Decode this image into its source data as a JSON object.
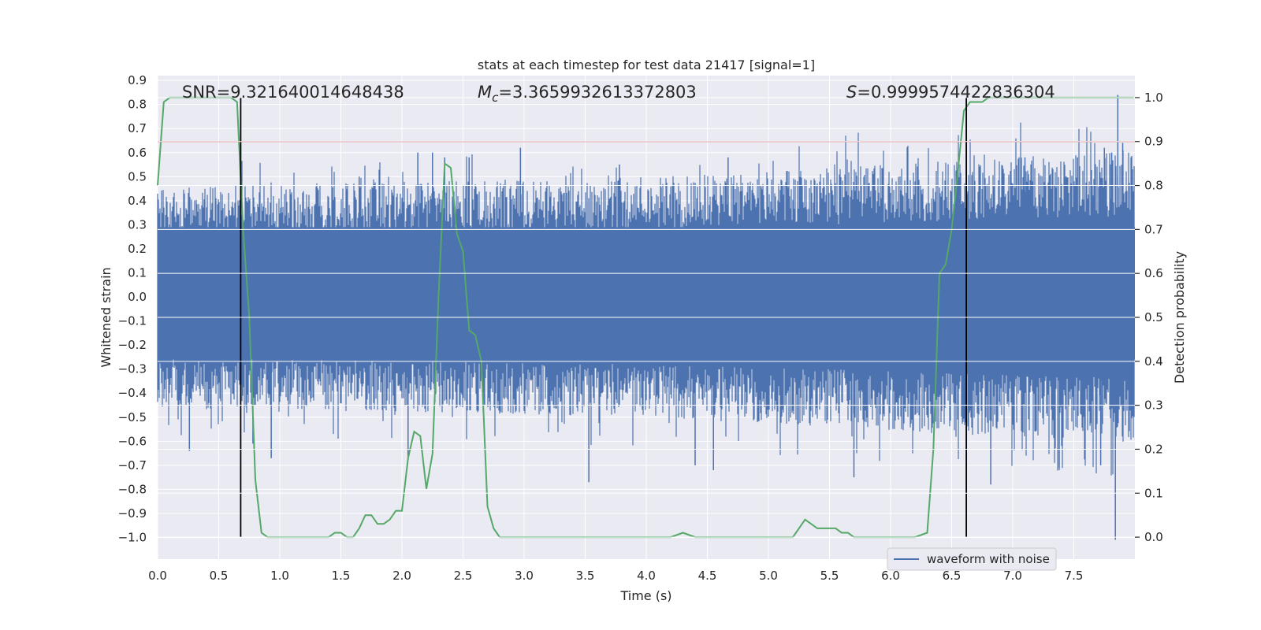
{
  "chart_data": {
    "type": "line",
    "title": "stats at each timestep for test data 21417 [signal=1]",
    "xlabel": "Time (s)",
    "ylabel_left": "Whitened strain",
    "ylabel_right": "Detection probability",
    "xlim": [
      0.0,
      8.0
    ],
    "ylim_left": [
      -1.09,
      0.92
    ],
    "ylim_right": [
      -0.05,
      1.05
    ],
    "xticks": [
      "0.0",
      "0.5",
      "1.0",
      "1.5",
      "2.0",
      "2.5",
      "3.0",
      "3.5",
      "4.0",
      "4.5",
      "5.0",
      "5.5",
      "6.0",
      "6.5",
      "7.0",
      "7.5"
    ],
    "yticks_left": [
      "0.9",
      "0.8",
      "0.7",
      "0.6",
      "0.5",
      "0.4",
      "0.3",
      "0.2",
      "0.1",
      "0.0",
      "−0.1",
      "−0.2",
      "−0.3",
      "−0.4",
      "−0.5",
      "−0.6",
      "−0.7",
      "−0.8",
      "−0.9",
      "−1.0"
    ],
    "yticks_right": [
      "1.0",
      "0.9",
      "0.8",
      "0.7",
      "0.6",
      "0.5",
      "0.4",
      "0.3",
      "0.2",
      "0.1",
      "0.0"
    ],
    "grid": true,
    "legend": {
      "placement": "lower-right",
      "entries": [
        "waveform with noise"
      ]
    },
    "annotations": {
      "snr": "SNR=9.321640014648438",
      "mc_symbol": "M",
      "mc_sub": "c",
      "mc_value": "=3.3659932613372803",
      "s_symbol": "S",
      "s_value": "=0.9999574422836304"
    },
    "threshold": {
      "value": 0.9,
      "axis": "right",
      "color": "#c44e52"
    },
    "vertical_markers_s": [
      0.68,
      6.62
    ],
    "waveform": {
      "name": "waveform with noise",
      "color": "#4c72b0",
      "duration_s": 8.0,
      "envelope": [
        0.34,
        0.37,
        0.45
      ],
      "peaks": [
        {
          "t": 0.26,
          "v": -0.64
        },
        {
          "t": 0.78,
          "v": -0.61
        },
        {
          "t": 0.93,
          "v": -0.67
        },
        {
          "t": 1.65,
          "v": 0.5
        },
        {
          "t": 2.05,
          "v": -0.68
        },
        {
          "t": 2.13,
          "v": 0.6
        },
        {
          "t": 2.25,
          "v": 0.6
        },
        {
          "t": 2.35,
          "v": 0.58
        },
        {
          "t": 2.55,
          "v": 0.58
        },
        {
          "t": 2.97,
          "v": 0.62
        },
        {
          "t": 3.53,
          "v": -0.77
        },
        {
          "t": 3.78,
          "v": 0.55
        },
        {
          "t": 4.4,
          "v": -0.7
        },
        {
          "t": 4.55,
          "v": -0.72
        },
        {
          "t": 4.67,
          "v": 0.58
        },
        {
          "t": 5.7,
          "v": -0.75
        },
        {
          "t": 6.82,
          "v": -0.78
        },
        {
          "t": 7.1,
          "v": 0.58
        },
        {
          "t": 7.38,
          "v": -0.71
        },
        {
          "t": 7.53,
          "v": 0.58
        },
        {
          "t": 7.72,
          "v": -0.7
        },
        {
          "t": 7.75,
          "v": 0.62
        },
        {
          "t": 7.81,
          "v": 0.6
        },
        {
          "t": 7.84,
          "v": -1.01
        },
        {
          "t": 7.86,
          "v": 0.84
        },
        {
          "t": 7.9,
          "v": 0.64
        }
      ]
    },
    "probability": {
      "name": "detection probability",
      "color": "#55a868",
      "t": [
        0.0,
        0.05,
        0.1,
        0.2,
        0.3,
        0.4,
        0.5,
        0.6,
        0.65,
        0.7,
        0.75,
        0.8,
        0.85,
        0.9,
        0.95,
        1.0,
        1.2,
        1.4,
        1.45,
        1.5,
        1.55,
        1.6,
        1.65,
        1.7,
        1.75,
        1.8,
        1.85,
        1.9,
        1.95,
        2.0,
        2.05,
        2.1,
        2.15,
        2.2,
        2.25,
        2.3,
        2.35,
        2.4,
        2.45,
        2.5,
        2.55,
        2.6,
        2.65,
        2.7,
        2.75,
        2.8,
        2.85,
        2.9,
        3.0,
        3.1,
        3.2,
        3.3,
        3.4,
        3.5,
        3.6,
        3.7,
        3.8,
        3.9,
        4.0,
        4.1,
        4.2,
        4.3,
        4.4,
        4.5,
        4.6,
        4.7,
        4.8,
        4.9,
        5.0,
        5.1,
        5.2,
        5.25,
        5.3,
        5.35,
        5.4,
        5.45,
        5.5,
        5.55,
        5.6,
        5.65,
        5.7,
        5.75,
        5.8,
        5.9,
        6.0,
        6.1,
        6.2,
        6.3,
        6.35,
        6.4,
        6.45,
        6.5,
        6.55,
        6.6,
        6.65,
        6.7,
        6.75,
        6.8,
        6.9,
        7.0,
        7.1,
        7.2,
        7.3,
        7.4,
        7.5,
        7.6,
        7.7,
        7.8,
        7.9,
        7.99
      ],
      "p": [
        0.8,
        0.99,
        1.0,
        1.0,
        1.0,
        1.0,
        1.0,
        1.0,
        0.99,
        0.7,
        0.5,
        0.13,
        0.01,
        0.0,
        0.0,
        0.0,
        0.0,
        0.0,
        0.01,
        0.01,
        0.0,
        0.0,
        0.02,
        0.05,
        0.05,
        0.03,
        0.03,
        0.04,
        0.06,
        0.06,
        0.18,
        0.24,
        0.23,
        0.11,
        0.19,
        0.55,
        0.85,
        0.84,
        0.69,
        0.65,
        0.47,
        0.46,
        0.4,
        0.07,
        0.02,
        0.0,
        0.0,
        0.0,
        0.0,
        0.0,
        0.0,
        0.0,
        0.0,
        0.0,
        0.0,
        0.0,
        0.0,
        0.0,
        0.0,
        0.0,
        0.0,
        0.01,
        0.0,
        0.0,
        0.0,
        0.0,
        0.0,
        0.0,
        0.0,
        0.0,
        0.0,
        0.02,
        0.04,
        0.03,
        0.02,
        0.02,
        0.02,
        0.02,
        0.01,
        0.01,
        0.0,
        0.0,
        0.0,
        0.0,
        0.0,
        0.0,
        0.0,
        0.01,
        0.2,
        0.6,
        0.62,
        0.7,
        0.83,
        0.97,
        0.99,
        0.99,
        0.99,
        1.0,
        1.0,
        1.0,
        1.0,
        1.0,
        1.0,
        1.0,
        1.0,
        1.0,
        1.0,
        1.0,
        1.0,
        1.0
      ]
    }
  }
}
